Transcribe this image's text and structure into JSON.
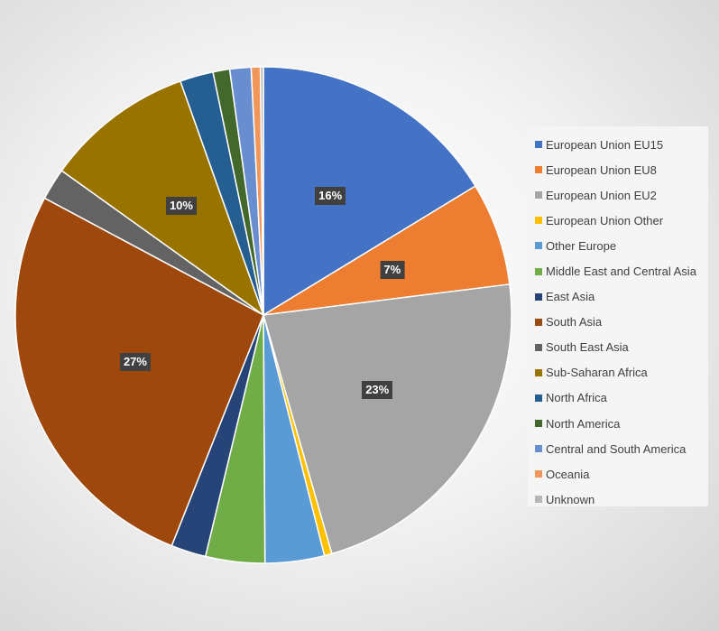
{
  "chart_data": {
    "type": "pie",
    "categories": [
      "European Union EU15",
      "European Union EU8",
      "European Union EU2",
      "European Union Other",
      "Other Europe",
      "Middle East and Central Asia",
      "East Asia",
      "South Asia",
      "South East Asia",
      "Sub-Saharan Africa",
      "North Africa",
      "North America",
      "Central and South America",
      "Oceania",
      "Unknown"
    ],
    "values": [
      16.5,
      6.8,
      22.8,
      0.5,
      3.9,
      3.9,
      2.3,
      27.1,
      2.1,
      9.8,
      2.2,
      1.1,
      1.4,
      0.6,
      0.2
    ],
    "data_labels": [
      "16%",
      "7%",
      "23%",
      "",
      "",
      "",
      "",
      "27%",
      "",
      "10%",
      "",
      "",
      "",
      "",
      ""
    ],
    "colors": [
      "#4472c4",
      "#ed7d31",
      "#a5a5a5",
      "#ffc000",
      "#5b9bd5",
      "#70ad47",
      "#264478",
      "#9e480e",
      "#636363",
      "#997300",
      "#255e91",
      "#43682b",
      "#698ed0",
      "#f1975a",
      "#b7b7b7"
    ],
    "start_angle_deg": 0,
    "direction": "clockwise",
    "legend_position": "right"
  }
}
